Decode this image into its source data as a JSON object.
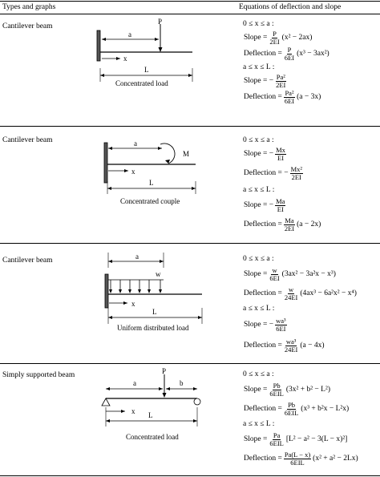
{
  "header": {
    "left": "Types and graphs",
    "right": "Equations of deflection and slope"
  },
  "rows": [
    {
      "label": "Cantilever beam",
      "diagram": {
        "P": "P",
        "a": "a",
        "x": "x",
        "L": "L",
        "caption": "Concentrated load"
      },
      "eq": {
        "c1": "0 ≤ x ≤ a :",
        "s1_lhs": "Slope =",
        "s1_num": "P",
        "s1_den": "2EI",
        "s1_rest": "(x² − 2ax)",
        "d1_lhs": "Deflection =",
        "d1_num": "P",
        "d1_den": "6EI",
        "d1_rest": "(x³ − 3ax²)",
        "c2": "a ≤ x ≤ L :",
        "s2_lhs": "Slope = −",
        "s2_num": "Pa²",
        "s2_den": "2EI",
        "d2_lhs": "Deflection =",
        "d2_num": "Pa²",
        "d2_den": "6EI",
        "d2_rest": "(a − 3x)"
      }
    },
    {
      "label": "Cantilever beam",
      "diagram": {
        "a": "a",
        "M": "M",
        "x": "x",
        "L": "L",
        "caption": "Concentrated couple"
      },
      "eq": {
        "c1": "0 ≤ x ≤ a :",
        "s1_lhs": "Slope = −",
        "s1_num": "Mx",
        "s1_den": "EI",
        "d1_lhs": "Deflection = −",
        "d1_num": "Mx²",
        "d1_den": "2EI",
        "c2": "a ≤ x ≤ L :",
        "s2_lhs": "Slope = −",
        "s2_num": "Ma",
        "s2_den": "EI",
        "d2_lhs": "Deflection =",
        "d2_num": "Ma",
        "d2_den": "2EI",
        "d2_rest": "(a − 2x)"
      }
    },
    {
      "label": "Cantilever beam",
      "diagram": {
        "a": "a",
        "w": "w",
        "x": "x",
        "L": "L",
        "caption": "Uniform distributed load"
      },
      "eq": {
        "c1": "0 ≤ x ≤ a :",
        "s1_lhs": "Slope =",
        "s1_num": "w",
        "s1_den": "6EI",
        "s1_rest": "(3ax² − 3a²x − x³)",
        "d1_lhs": "Deflection =",
        "d1_num": "w",
        "d1_den": "24EI",
        "d1_rest": "(4ax³ − 6a²x² − x⁴)",
        "c2": "a ≤ x ≤ L :",
        "s2_lhs": "Slope = −",
        "s2_num": "wa³",
        "s2_den": "6EI",
        "d2_lhs": "Deflection =",
        "d2_num": "wa³",
        "d2_den": "24EI",
        "d2_rest": "(a − 4x)"
      }
    },
    {
      "label": "Simply supported beam",
      "diagram": {
        "P": "P",
        "a": "a",
        "b": "b",
        "x": "x",
        "L": "L",
        "caption": "Concentrated load"
      },
      "eq": {
        "c1": "0 ≤ x ≤ a :",
        "s1_lhs": "Slope =",
        "s1_num": "Pb",
        "s1_den": "6EIL",
        "s1_rest": "(3x² + b² − L²)",
        "d1_lhs": "Deflection =",
        "d1_num": "Pb",
        "d1_den": "6EIL",
        "d1_rest": "(x³ + b²x − L²x)",
        "c2": "a ≤ x ≤ L :",
        "s2_lhs": "Slope =",
        "s2_num": "Pa",
        "s2_den": "6EIL",
        "s2_rest": "[L² − a² − 3(L − x)²]",
        "d2_lhs": "Deflection =",
        "d2_num": "Pa(L − x)",
        "d2_den": "6EIL",
        "d2_rest": "(x² + a² − 2Lx)"
      }
    }
  ]
}
